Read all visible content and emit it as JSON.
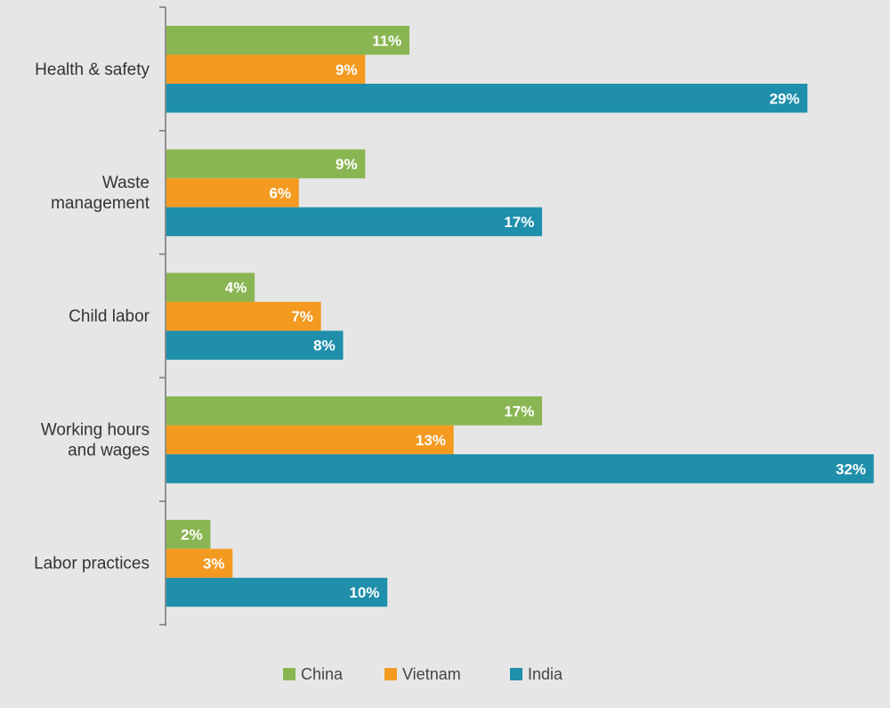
{
  "chart_data": {
    "type": "bar",
    "orientation": "horizontal",
    "categories": [
      "Health & safety",
      "Waste management",
      "Child labor",
      "Working hours and wages",
      "Labor practices"
    ],
    "category_lines": [
      [
        "Health & safety"
      ],
      [
        "Waste",
        "management"
      ],
      [
        "Child labor"
      ],
      [
        "Working hours",
        "and wages"
      ],
      [
        "Labor practices"
      ]
    ],
    "series": [
      {
        "name": "China",
        "color": "#8ab553",
        "values": [
          11,
          9,
          4,
          17,
          2
        ],
        "labels": [
          "11%",
          "9%",
          "4%",
          "17%",
          "2%"
        ]
      },
      {
        "name": "Vietnam",
        "color": "#f49a21",
        "values": [
          9,
          6,
          7,
          13,
          3
        ],
        "labels": [
          "9%",
          "6%",
          "7%",
          "13%",
          "3%"
        ]
      },
      {
        "name": "India",
        "color": "#1f8fab",
        "values": [
          29,
          17,
          8,
          32,
          10
        ],
        "labels": [
          "29%",
          "17%",
          "8%",
          "32%",
          "10%"
        ]
      }
    ],
    "xlim": [
      0,
      32
    ],
    "grid": false,
    "legend_position": "bottom"
  }
}
